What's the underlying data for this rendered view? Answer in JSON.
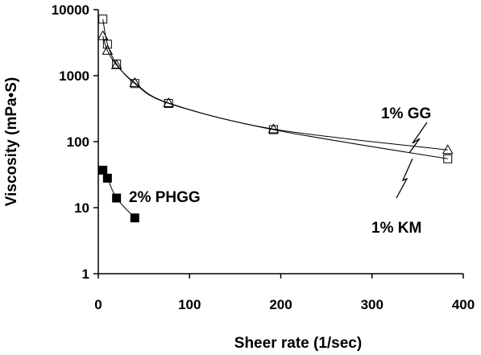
{
  "chart_data": {
    "type": "scatter",
    "title": "",
    "xlabel": "Sheer rate (1/sec)",
    "ylabel": "Viscosity (mPa•S)",
    "xlim": [
      0,
      400
    ],
    "ylim": [
      1,
      10000
    ],
    "yscale": "log",
    "grid": false,
    "x_ticks": [
      0,
      100,
      200,
      300,
      400
    ],
    "x_tick_labels": [
      "0",
      "100",
      "200",
      "300",
      "400"
    ],
    "y_ticks": [
      1,
      10,
      100,
      1000,
      10000
    ],
    "y_tick_labels": [
      "1",
      "10",
      "100",
      "1000",
      "10000"
    ],
    "series": [
      {
        "name": "1% GG",
        "marker": "triangle-open",
        "points": [
          {
            "x": 5,
            "y": 4000
          },
          {
            "x": 10,
            "y": 2400
          },
          {
            "x": 20,
            "y": 1450
          },
          {
            "x": 40,
            "y": 780
          },
          {
            "x": 77,
            "y": 385
          },
          {
            "x": 192,
            "y": 155
          },
          {
            "x": 383,
            "y": 75
          }
        ]
      },
      {
        "name": "1% KM",
        "marker": "square-open",
        "points": [
          {
            "x": 5,
            "y": 7200
          },
          {
            "x": 10,
            "y": 3000
          },
          {
            "x": 20,
            "y": 1500
          },
          {
            "x": 40,
            "y": 760
          },
          {
            "x": 77,
            "y": 380
          },
          {
            "x": 192,
            "y": 152
          },
          {
            "x": 383,
            "y": 55
          }
        ]
      },
      {
        "name": "2% PHGG",
        "marker": "square-filled",
        "points": [
          {
            "x": 5,
            "y": 37
          },
          {
            "x": 10,
            "y": 28
          },
          {
            "x": 20,
            "y": 14
          },
          {
            "x": 40,
            "y": 7
          }
        ]
      }
    ]
  }
}
